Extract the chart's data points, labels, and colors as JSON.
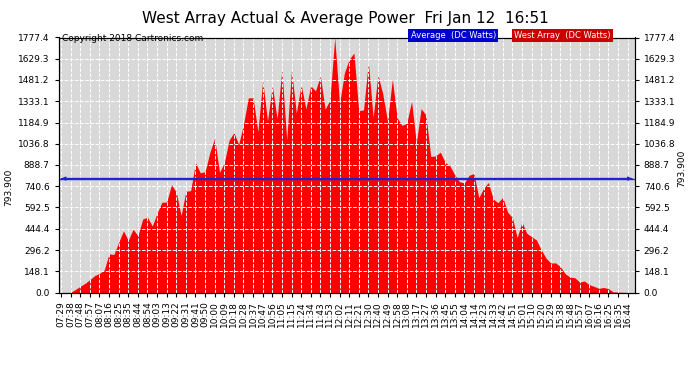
{
  "title": "West Array Actual & Average Power  Fri Jan 12  16:51",
  "copyright": "Copyright 2018 Cartronics.com",
  "legend_items": [
    {
      "label": "Average  (DC Watts)",
      "bg": "#0000cc"
    },
    {
      "label": "West Array  (DC Watts)",
      "bg": "#cc0000"
    }
  ],
  "yticks": [
    0.0,
    148.1,
    296.2,
    444.4,
    592.5,
    740.6,
    888.7,
    1036.8,
    1184.9,
    1333.1,
    1481.2,
    1629.3,
    1777.4
  ],
  "ymax": 1777.4,
  "ymin": 0.0,
  "average_line": 793.9,
  "average_label": "793.900",
  "fill_color": "#ff0000",
  "avg_line_color": "#2222cc",
  "background_color": "#ffffff",
  "plot_bg_color": "#d8d8d8",
  "grid_color": "#ffffff",
  "title_fontsize": 11,
  "copyright_fontsize": 6.5,
  "tick_fontsize": 6.5,
  "num_points": 120,
  "xtick_start_h": 7,
  "xtick_start_m": 29,
  "duration_minutes": 560
}
